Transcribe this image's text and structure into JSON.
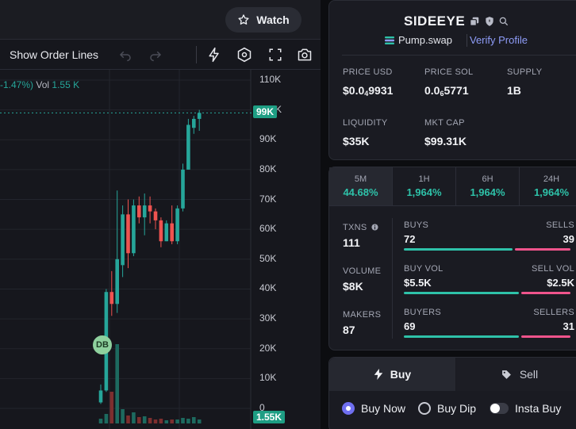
{
  "topbar": {
    "watch_label": "Watch"
  },
  "toolbar": {
    "order_lines_label": "Show Order Lines"
  },
  "legend": {
    "change": "-1.47%)",
    "vol_label": "Vol",
    "vol_value": "1.55 K"
  },
  "chart_data": {
    "type": "candlestick",
    "y_ticks": [
      "110K",
      "100K",
      "90K",
      "80K",
      "70K",
      "60K",
      "50K",
      "40K",
      "30K",
      "20K",
      "10K",
      "0"
    ],
    "ylim": [
      0,
      110000
    ],
    "last_price_label": "99K",
    "last_volume_label": "1.55K",
    "marker_label": "DB",
    "candles": [
      {
        "o": 2000,
        "h": 8000,
        "l": 1500,
        "c": 6000
      },
      {
        "o": 6000,
        "h": 40000,
        "l": 5500,
        "c": 39000
      },
      {
        "o": 39000,
        "h": 46000,
        "l": 31000,
        "c": 35000
      },
      {
        "o": 35000,
        "h": 73000,
        "l": 32000,
        "c": 50000
      },
      {
        "o": 48000,
        "h": 68000,
        "l": 44000,
        "c": 65000
      },
      {
        "o": 65000,
        "h": 70000,
        "l": 47000,
        "c": 52000
      },
      {
        "o": 52000,
        "h": 70000,
        "l": 51000,
        "c": 68000
      },
      {
        "o": 68000,
        "h": 71000,
        "l": 62000,
        "c": 64000
      },
      {
        "o": 64000,
        "h": 72000,
        "l": 58000,
        "c": 68000
      },
      {
        "o": 68000,
        "h": 71000,
        "l": 62000,
        "c": 66000
      },
      {
        "o": 66000,
        "h": 67000,
        "l": 60000,
        "c": 63000
      },
      {
        "o": 63000,
        "h": 64000,
        "l": 54000,
        "c": 56000
      },
      {
        "o": 56000,
        "h": 63000,
        "l": 56000,
        "c": 62000
      },
      {
        "o": 62000,
        "h": 68000,
        "l": 55000,
        "c": 56000
      },
      {
        "o": 56000,
        "h": 68000,
        "l": 55000,
        "c": 67000
      },
      {
        "o": 67000,
        "h": 82000,
        "l": 66000,
        "c": 80000
      },
      {
        "o": 80000,
        "h": 97000,
        "l": 80000,
        "c": 95000
      },
      {
        "o": 94000,
        "h": 98000,
        "l": 92000,
        "c": 97000
      },
      {
        "o": 97000,
        "h": 100000,
        "l": 93000,
        "c": 99000
      }
    ],
    "volume": [
      6,
      12,
      40,
      100,
      18,
      10,
      14,
      8,
      9,
      7,
      5,
      6,
      4,
      5,
      5,
      7,
      6,
      8,
      5
    ],
    "colors": {
      "up": "#26a69a",
      "down": "#ef5350",
      "up_vol": "#1d6a5f",
      "down_vol": "#7d2e2e"
    }
  },
  "token": {
    "name": "SIDEEYE",
    "dex": "Pump.swap",
    "verify_label": "Verify Profile",
    "stats": [
      {
        "label": "PRICE USD",
        "pre": "$0.0",
        "sub": "4",
        "post": "9931"
      },
      {
        "label": "PRICE SOL",
        "pre": "0.0",
        "sub": "6",
        "post": "5771"
      },
      {
        "label": "SUPPLY",
        "pre": "1B",
        "sub": "",
        "post": ""
      },
      {
        "label": "LIQUIDITY",
        "pre": "$35K",
        "sub": "",
        "post": ""
      },
      {
        "label": "MKT CAP",
        "pre": "$99.31K",
        "sub": "",
        "post": ""
      }
    ]
  },
  "timeframes": [
    {
      "label": "5M",
      "value": "44.68%"
    },
    {
      "label": "1H",
      "value": "1,964%"
    },
    {
      "label": "6H",
      "value": "1,964%"
    },
    {
      "label": "24H",
      "value": "1,964%"
    }
  ],
  "txn_stats": {
    "txns": {
      "label": "TXNS",
      "value": "111"
    },
    "volume": {
      "label": "VOLUME",
      "value": "$8K"
    },
    "makers": {
      "label": "MAKERS",
      "value": "87"
    },
    "buys": {
      "label": "BUYS",
      "value": "72"
    },
    "sells": {
      "label": "SELLS",
      "value": "39"
    },
    "buy_vol": {
      "label": "BUY VOL",
      "value": "$5.5K"
    },
    "sell_vol": {
      "label": "SELL VOL",
      "value": "$2.5K"
    },
    "buyers": {
      "label": "BUYERS",
      "value": "69"
    },
    "sellers": {
      "label": "SELLERS",
      "value": "31"
    },
    "ratios": {
      "buys": 0.65,
      "buy_vol": 0.69,
      "buyers": 0.69
    },
    "colors": {
      "buy": "#2ec2a9",
      "sell": "#f0548c"
    }
  },
  "trade": {
    "buy_tab": "Buy",
    "sell_tab": "Sell",
    "options": {
      "buy_now": "Buy Now",
      "buy_dip": "Buy Dip",
      "insta_buy": "Insta Buy"
    }
  }
}
